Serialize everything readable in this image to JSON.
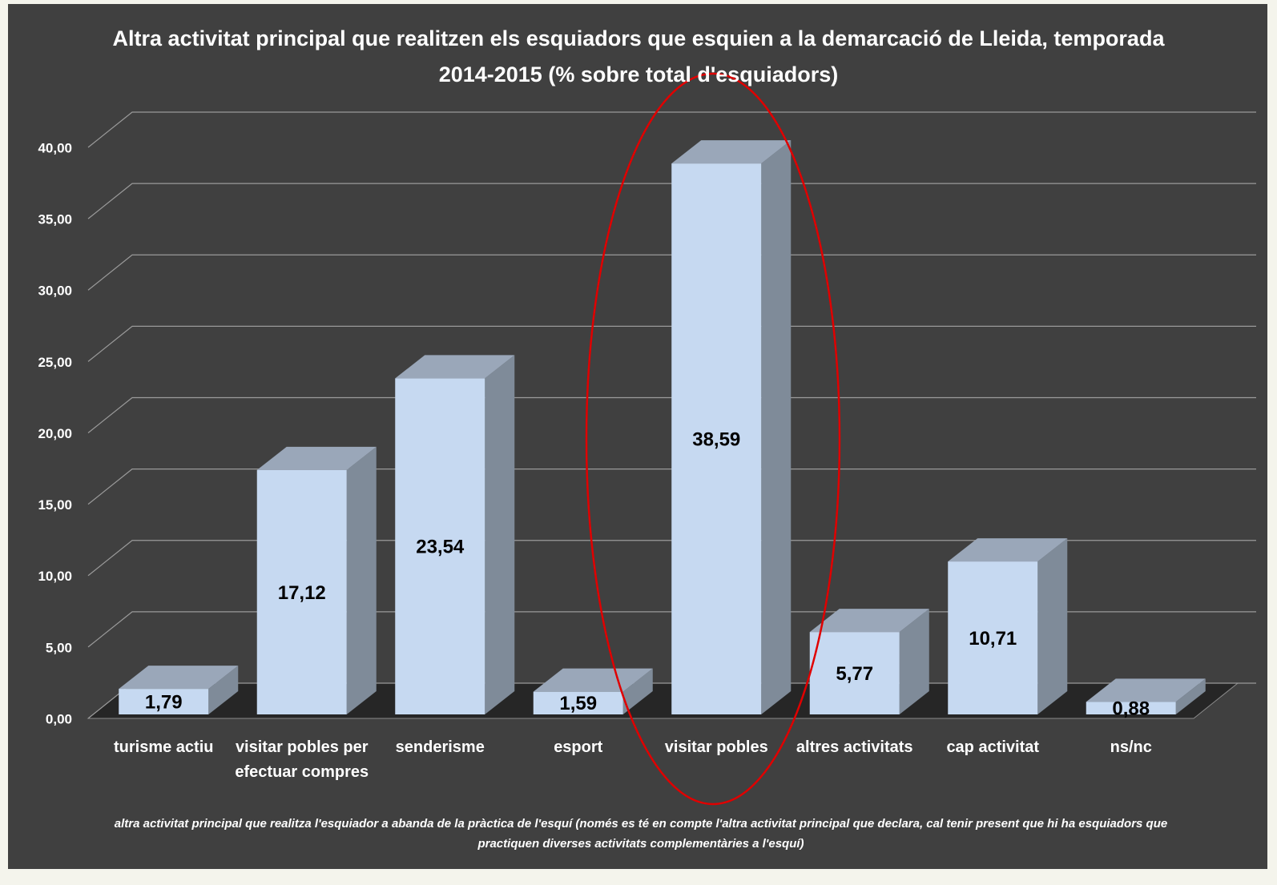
{
  "chart_data": {
    "type": "bar3d",
    "title": "Altra activitat principal que realitzen els esquiadors que esquien a la demarcació de Lleida, temporada 2014-2015 (% sobre total d'esquiadors)",
    "categories": [
      "turisme actiu",
      "visitar pobles per efectuar compres",
      "senderisme",
      "esport",
      "visitar pobles",
      "altres activitats",
      "cap activitat",
      "ns/nc"
    ],
    "values": [
      1.79,
      17.12,
      23.54,
      1.59,
      38.59,
      5.77,
      10.71,
      0.88
    ],
    "value_labels": [
      "1,79",
      "17,12",
      "23,54",
      "1,59",
      "38,59",
      "5,77",
      "10,71",
      "0,88"
    ],
    "color": "#c6d9f1",
    "ylim": [
      0,
      40
    ],
    "yticks": [
      {
        "value": 0,
        "label": "0,00"
      },
      {
        "value": 5,
        "label": "5,00"
      },
      {
        "value": 10,
        "label": "10,00"
      },
      {
        "value": 15,
        "label": "15,00"
      },
      {
        "value": 20,
        "label": "20,00"
      },
      {
        "value": 25,
        "label": "25,00"
      },
      {
        "value": 30,
        "label": "30,00"
      },
      {
        "value": 35,
        "label": "35,00"
      },
      {
        "value": 40,
        "label": "40,00"
      }
    ],
    "grid": true,
    "note": "altra activitat principal que realitza l'esquiador a abanda de la pràctica de l'esquí (només es té en compte l'altra activitat principal que declara, cal tenir present que hi ha esquiadors que practiquen diverses activitats complementàries a l'esquí)"
  }
}
